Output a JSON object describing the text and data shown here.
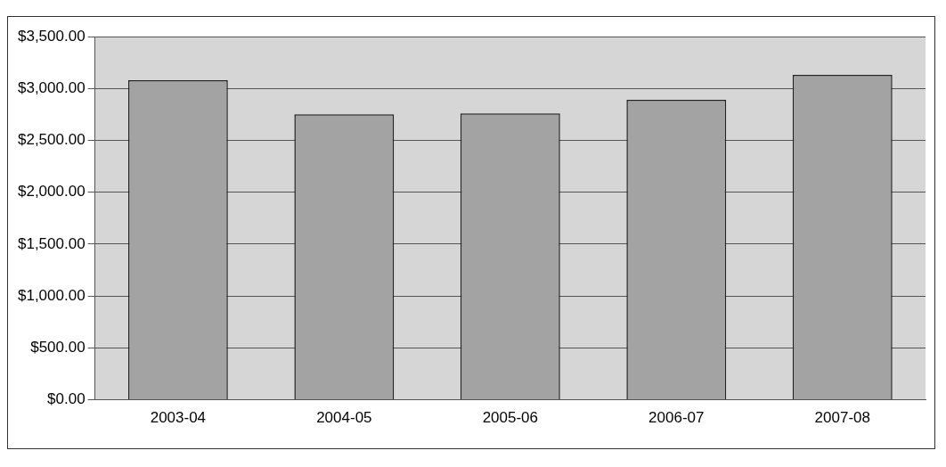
{
  "chart_data": {
    "type": "bar",
    "categories": [
      "2003-04",
      "2004-05",
      "2005-06",
      "2006-07",
      "2007-08"
    ],
    "values": [
      3080,
      2750,
      2760,
      2890,
      3130
    ],
    "color": "#a3a3a3",
    "ylim": [
      0,
      3500
    ],
    "yticks": [
      {
        "value": 0,
        "label": "$0.00"
      },
      {
        "value": 500,
        "label": "$500.00"
      },
      {
        "value": 1000,
        "label": "$1,000.00"
      },
      {
        "value": 1500,
        "label": "$1,500.00"
      },
      {
        "value": 2000,
        "label": "$2,000.00"
      },
      {
        "value": 2500,
        "label": "$2,500.00"
      },
      {
        "value": 3000,
        "label": "$3,000.00"
      },
      {
        "value": 3500,
        "label": "$3,500.00"
      }
    ],
    "grid": "y",
    "legend": false
  }
}
